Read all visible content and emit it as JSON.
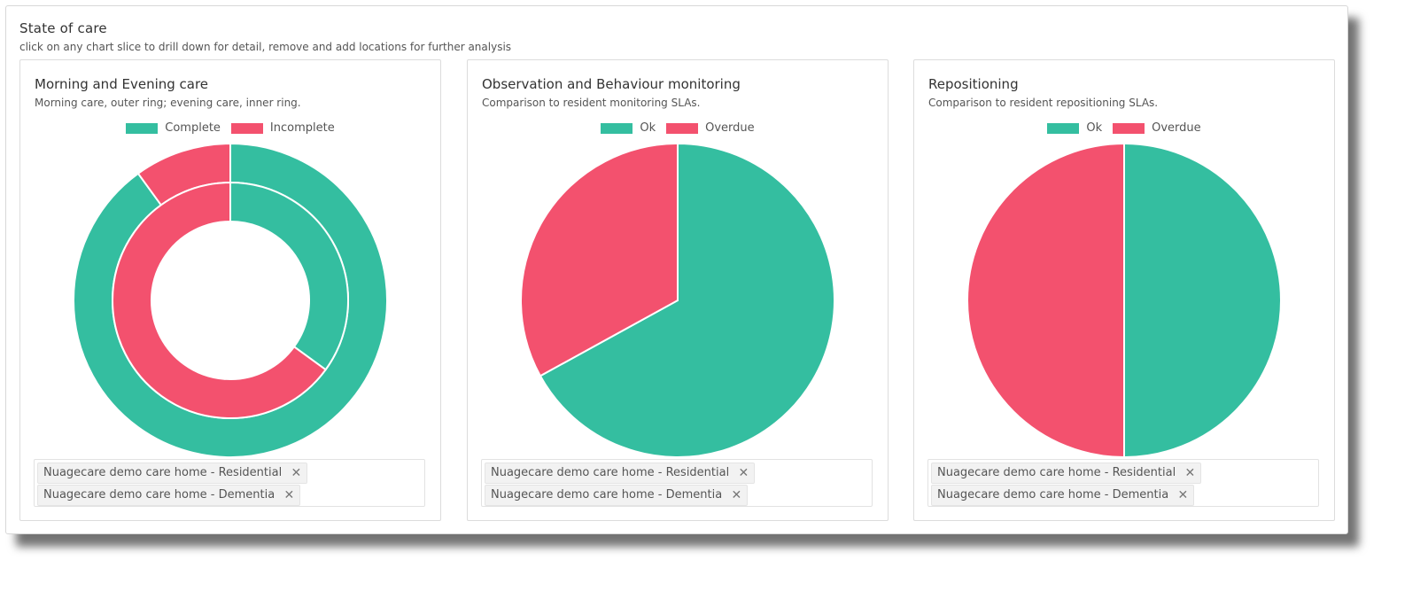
{
  "section": {
    "title": "State of care",
    "subtitle": "click on any chart slice to drill down for detail, remove and add locations for further analysis"
  },
  "colors": {
    "green": "#34bea0",
    "red": "#f3516e"
  },
  "cards": [
    {
      "title": "Morning and Evening care",
      "description": "Morning care, outer ring; evening care, inner ring.",
      "legend": [
        {
          "label": "Complete",
          "color": "#34bea0"
        },
        {
          "label": "Incomplete",
          "color": "#f3516e"
        }
      ],
      "tags": [
        {
          "label": "Nuagecare demo care home - Residential",
          "remove": "✕"
        },
        {
          "label": "Nuagecare demo care home - Dementia",
          "remove": "✕"
        }
      ]
    },
    {
      "title": "Observation and Behaviour monitoring",
      "description": "Comparison to resident monitoring SLAs.",
      "legend": [
        {
          "label": "Ok",
          "color": "#34bea0"
        },
        {
          "label": "Overdue",
          "color": "#f3516e"
        }
      ],
      "tags": [
        {
          "label": "Nuagecare demo care home - Residential",
          "remove": "✕"
        },
        {
          "label": "Nuagecare demo care home - Dementia",
          "remove": "✕"
        }
      ]
    },
    {
      "title": "Repositioning",
      "description": "Comparison to resident repositioning SLAs.",
      "legend": [
        {
          "label": "Ok",
          "color": "#34bea0"
        },
        {
          "label": "Overdue",
          "color": "#f3516e"
        }
      ],
      "tags": [
        {
          "label": "Nuagecare demo care home - Residential",
          "remove": "✕"
        },
        {
          "label": "Nuagecare demo care home - Dementia",
          "remove": "✕"
        }
      ]
    }
  ],
  "chart_data": [
    {
      "type": "pie",
      "variant": "doughnut-two-rings",
      "categories": [
        "Complete",
        "Incomplete"
      ],
      "series": [
        {
          "ring": "outer",
          "values": [
            90,
            10
          ]
        },
        {
          "ring": "inner",
          "values": [
            35,
            65
          ]
        }
      ]
    },
    {
      "type": "pie",
      "categories": [
        "Ok",
        "Overdue"
      ],
      "values": [
        67,
        33
      ]
    },
    {
      "type": "pie",
      "categories": [
        "Ok",
        "Overdue"
      ],
      "values": [
        50,
        50
      ]
    }
  ]
}
